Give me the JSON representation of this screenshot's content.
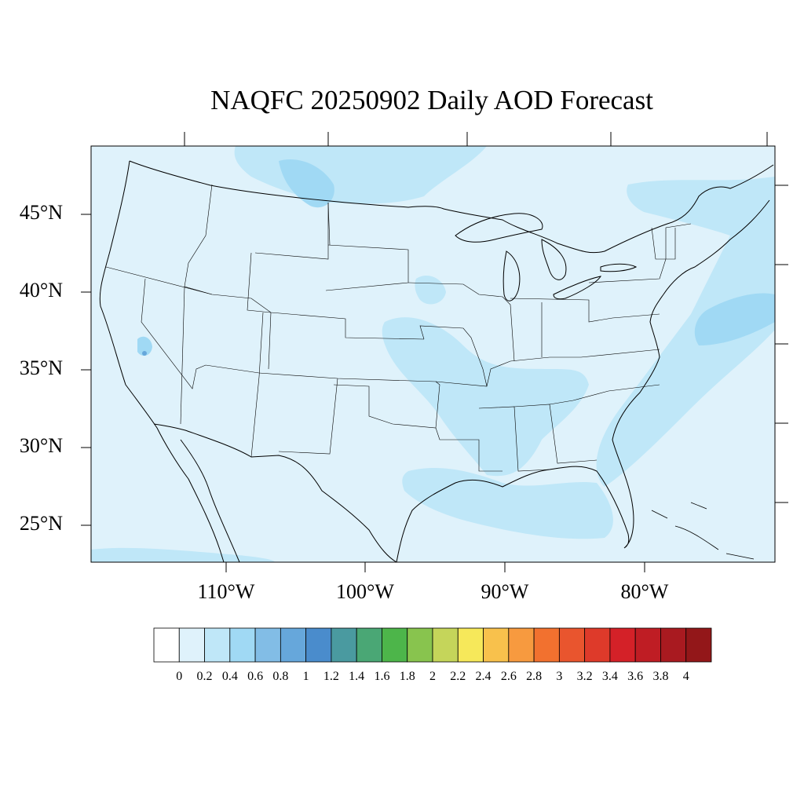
{
  "title": "NAQFC 20250902 Daily AOD Forecast",
  "map": {
    "lat_labels": [
      "45°N",
      "40°N",
      "35°N",
      "30°N",
      "25°N"
    ],
    "lon_labels": [
      "110°W",
      "100°W",
      "90°W",
      "80°W"
    ],
    "background_color": "#dff2fb"
  },
  "colorbar": {
    "labels": [
      "0",
      "0.2",
      "0.4",
      "0.6",
      "0.8",
      "1",
      "1.2",
      "1.4",
      "1.6",
      "1.8",
      "2",
      "2.2",
      "2.4",
      "2.6",
      "2.8",
      "3",
      "3.2",
      "3.4",
      "3.6",
      "3.8",
      "4"
    ],
    "colors": [
      "#ffffff",
      "#dff2fb",
      "#bfe7f8",
      "#a0d9f4",
      "#82bde6",
      "#66a7db",
      "#4a8ccc",
      "#4a9aa0",
      "#4aa775",
      "#4db54a",
      "#88c44e",
      "#c5d55a",
      "#f6e85a",
      "#f8c14c",
      "#f79a3f",
      "#f2712f",
      "#e9552e",
      "#de3a2a",
      "#d42128",
      "#bf1d24",
      "#a91a20",
      "#931719"
    ]
  }
}
